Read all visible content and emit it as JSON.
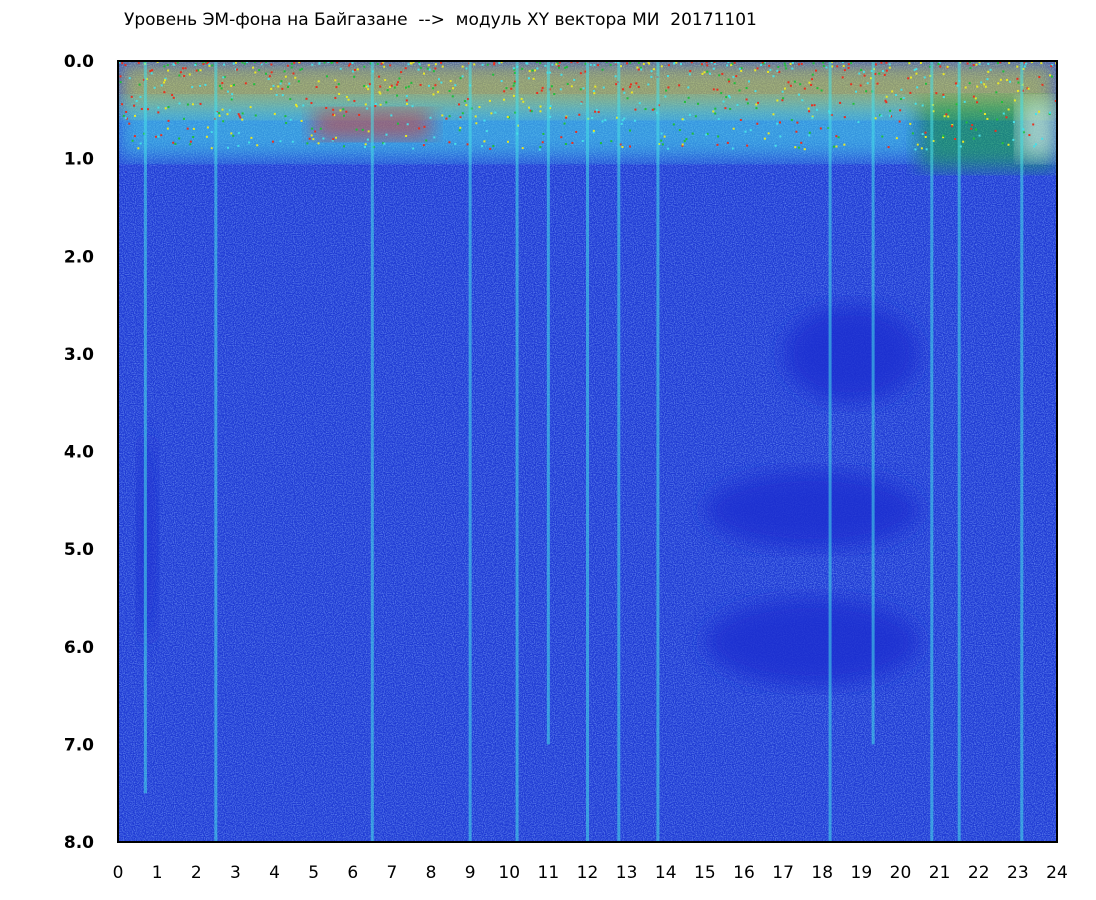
{
  "chart_data": {
    "type": "heatmap",
    "title": "Уровень ЭМ-фона на Байгазане  -->  модуль XY вектора МИ  20171101",
    "x_ticks": [
      "0",
      "1",
      "2",
      "3",
      "4",
      "5",
      "6",
      "7",
      "8",
      "9",
      "10",
      "11",
      "12",
      "13",
      "14",
      "15",
      "16",
      "17",
      "18",
      "19",
      "20",
      "21",
      "22",
      "23",
      "24"
    ],
    "y_ticks": [
      "0.0",
      "1.0",
      "2.0",
      "3.0",
      "4.0",
      "5.0",
      "6.0",
      "7.0",
      "8.0"
    ],
    "xlim": [
      0,
      24
    ],
    "ylim": [
      0,
      8
    ],
    "y_inverted": true,
    "colormap": [
      "#1a2fd0",
      "#3a66e6",
      "#5aa0ee",
      "#46e0e8",
      "#1fbf3a",
      "#e8e826",
      "#e83020",
      "#ffffff"
    ],
    "background": "#1f3bd4",
    "bright_zones": [
      {
        "x": [
          0.0,
          24.0
        ],
        "y": [
          0.0,
          0.55
        ],
        "level": 5
      },
      {
        "x": [
          0.0,
          20.5
        ],
        "y": [
          0.4,
          1.0
        ],
        "level": 3
      },
      {
        "x": [
          20.5,
          24.0
        ],
        "y": [
          0.4,
          1.1
        ],
        "level": 4
      },
      {
        "x": [
          23.0,
          24.0
        ],
        "y": [
          0.4,
          1.0
        ],
        "level": 7
      },
      {
        "x": [
          5.0,
          8.0
        ],
        "y": [
          0.5,
          0.8
        ],
        "level": 6
      }
    ],
    "dark_zones": [
      {
        "x": [
          17.0,
          20.5
        ],
        "y": [
          2.5,
          3.5
        ]
      },
      {
        "x": [
          15.0,
          20.5
        ],
        "y": [
          4.2,
          5.0
        ]
      },
      {
        "x": [
          15.0,
          20.5
        ],
        "y": [
          5.5,
          6.4
        ]
      },
      {
        "x": [
          0.5,
          1.0
        ],
        "y": [
          3.8,
          6.0
        ]
      }
    ],
    "vertical_streaks": [
      {
        "x": 0.7,
        "y_end": 7.5
      },
      {
        "x": 2.5,
        "y_end": 8.0
      },
      {
        "x": 6.5,
        "y_end": 8.0
      },
      {
        "x": 9.0,
        "y_end": 8.0
      },
      {
        "x": 10.2,
        "y_end": 8.0
      },
      {
        "x": 11.0,
        "y_end": 7.0
      },
      {
        "x": 12.0,
        "y_end": 8.0
      },
      {
        "x": 12.8,
        "y_end": 8.0
      },
      {
        "x": 13.8,
        "y_end": 8.0
      },
      {
        "x": 18.2,
        "y_end": 8.0
      },
      {
        "x": 19.3,
        "y_end": 7.0
      },
      {
        "x": 20.8,
        "y_end": 8.0
      },
      {
        "x": 21.5,
        "y_end": 8.0
      },
      {
        "x": 23.1,
        "y_end": 8.0
      }
    ]
  }
}
